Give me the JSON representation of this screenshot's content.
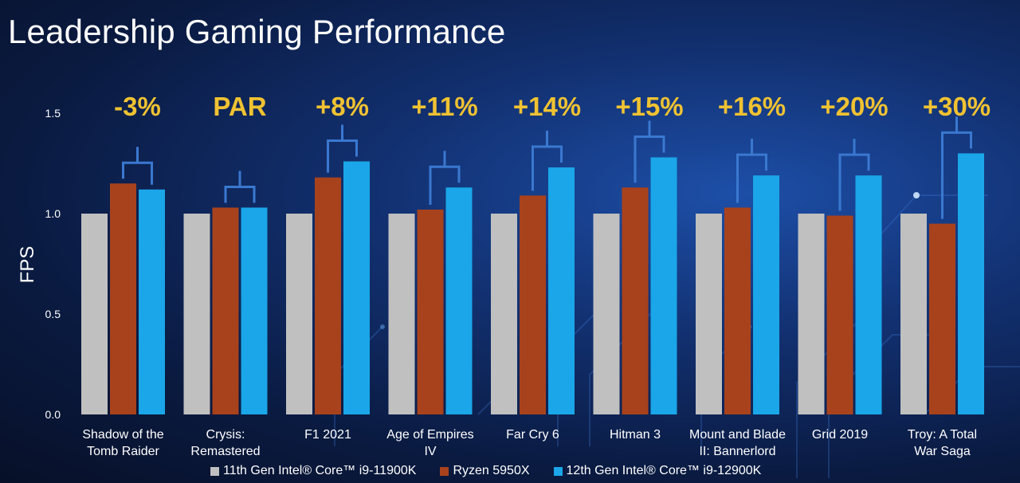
{
  "title": "Leadership Gaming Performance",
  "colors": {
    "background": "#0b1630",
    "bracket": "#3a78d0",
    "delta": "#f0c232"
  },
  "chart_data": {
    "type": "bar",
    "title": "Leadership Gaming Performance",
    "ylabel": "FPS",
    "ylim": [
      0,
      1.5
    ],
    "yticks": [
      "0.0",
      "0.5",
      "1.0",
      "1.5"
    ],
    "grid": false,
    "legend_position": "bottom",
    "categories": [
      [
        "Shadow of the",
        "Tomb Raider"
      ],
      [
        "Crysis:",
        "Remastered"
      ],
      [
        "F1 2021"
      ],
      [
        "Age of Empires",
        "IV"
      ],
      [
        "Far Cry 6"
      ],
      [
        "Hitman 3"
      ],
      [
        "Mount and Blade",
        "II: Bannerlord"
      ],
      [
        "Grid 2019"
      ],
      [
        "Troy: A Total",
        "War Saga"
      ]
    ],
    "series": [
      {
        "name": "11th Gen Intel® Core™ i9-11900K",
        "color": "#c0c0c0",
        "values": [
          1.0,
          1.0,
          1.0,
          1.0,
          1.0,
          1.0,
          1.0,
          1.0,
          1.0
        ]
      },
      {
        "name": "Ryzen 5950X",
        "color": "#a8421c",
        "values": [
          1.15,
          1.03,
          1.18,
          1.02,
          1.09,
          1.13,
          1.03,
          0.99,
          0.95
        ]
      },
      {
        "name": "12th Gen Intel® Core™ i9-12900K",
        "color": "#1aa6e8",
        "values": [
          1.12,
          1.03,
          1.26,
          1.13,
          1.23,
          1.28,
          1.19,
          1.19,
          1.3
        ]
      }
    ],
    "annotations": [
      "-3%",
      "PAR",
      "+8%",
      "+11%",
      "+14%",
      "+15%",
      "+16%",
      "+20%",
      "+30%"
    ]
  }
}
